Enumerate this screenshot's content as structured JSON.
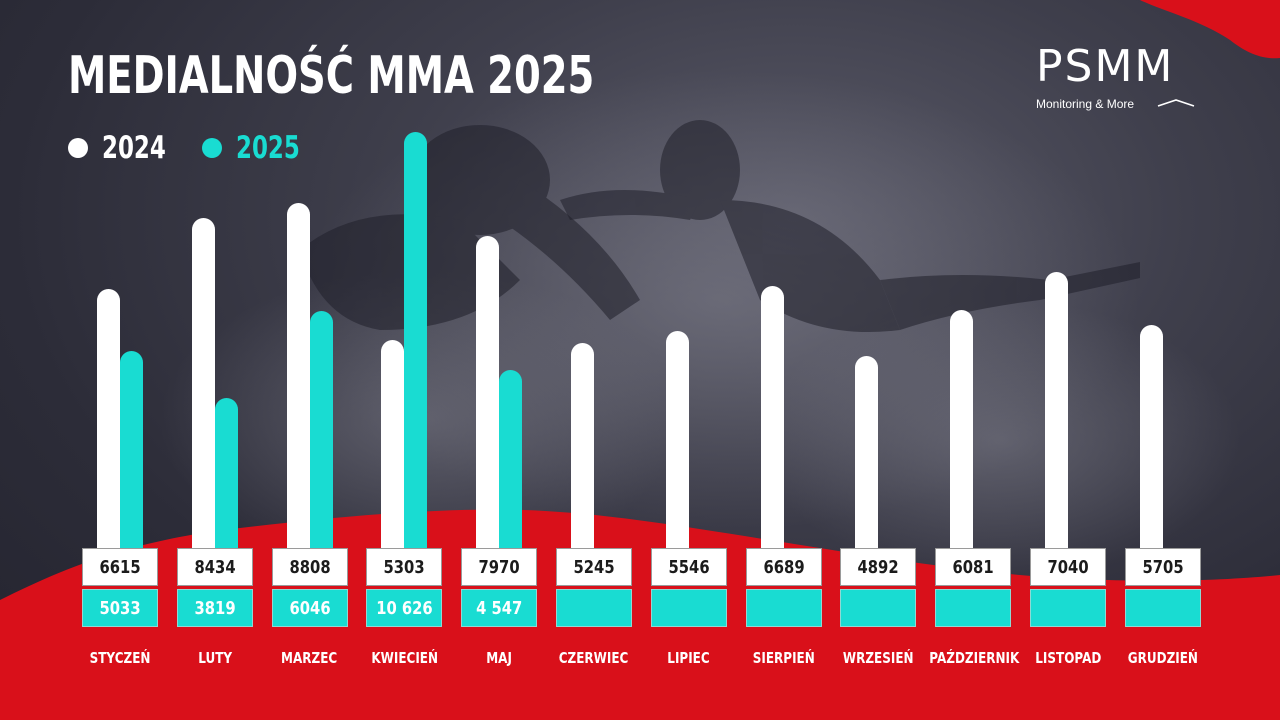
{
  "title": "MEDIALNOŚĆ MMA 2025",
  "logo": {
    "name": "PSMM",
    "tagline": "Monitoring & More"
  },
  "colors": {
    "series_2024": "#ffffff",
    "series_2025": "#19dcd2",
    "accent_red": "#d9101a",
    "background": "#2f2f3b"
  },
  "chart_data": {
    "type": "bar",
    "title": "MEDIALNOŚĆ MMA 2025",
    "legend_position": "top-left",
    "categories": [
      "STYCZEŃ",
      "LUTY",
      "MARZEC",
      "KWIECIEŃ",
      "MAJ",
      "CZERWIEC",
      "LIPIEC",
      "SIERPIEŃ",
      "WRZESIEŃ",
      "PAŹDZIERNIK",
      "LISTOPAD",
      "GRUDZIEŃ"
    ],
    "series": [
      {
        "name": "2024",
        "values": [
          6615,
          8434,
          8808,
          5303,
          7970,
          5245,
          5546,
          6689,
          4892,
          6081,
          7040,
          5705
        ],
        "labels": [
          "6615",
          "8434",
          "8808",
          "5303",
          "7970",
          "5245",
          "5546",
          "6689",
          "4892",
          "6081",
          "7040",
          "5705"
        ]
      },
      {
        "name": "2025",
        "values": [
          5033,
          3819,
          6046,
          10626,
          4547,
          null,
          null,
          null,
          null,
          null,
          null,
          null
        ],
        "labels": [
          "5033",
          "3819",
          "6046",
          "10 626",
          "4 547",
          "",
          "",
          "",
          "",
          "",
          "",
          ""
        ]
      }
    ],
    "ylim": [
      0,
      10626
    ],
    "grid": false
  }
}
